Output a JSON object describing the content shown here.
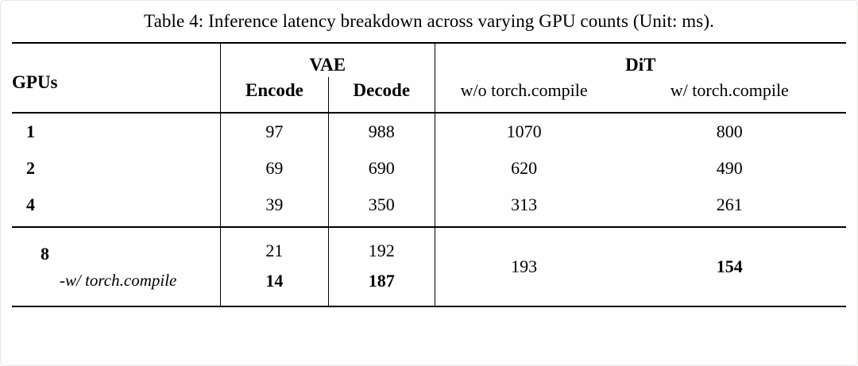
{
  "caption": "Table 4: Inference latency breakdown across varying GPU counts (Unit: ms).",
  "table": {
    "headers": {
      "gpus": "GPUs",
      "vae": "VAE",
      "dit": "DiT",
      "encode": "Encode",
      "decode": "Decode",
      "dit_no_compile": "w/o torch.compile",
      "dit_compile": "w/ torch.compile"
    },
    "rows": [
      {
        "gpus": "1",
        "encode": "97",
        "decode": "988",
        "dit_no_compile": "1070",
        "dit_compile": "800"
      },
      {
        "gpus": "2",
        "encode": "69",
        "decode": "690",
        "dit_no_compile": "620",
        "dit_compile": "490"
      },
      {
        "gpus": "4",
        "encode": "39",
        "decode": "350",
        "dit_no_compile": "313",
        "dit_compile": "261"
      }
    ],
    "gpu8_group": {
      "gpus": "8",
      "sub_label": "-w/ torch.compile",
      "encode": "21",
      "decode": "192",
      "encode_compiled": "14",
      "decode_compiled": "187",
      "dit_no_compile": "193",
      "dit_compile": "154"
    }
  }
}
